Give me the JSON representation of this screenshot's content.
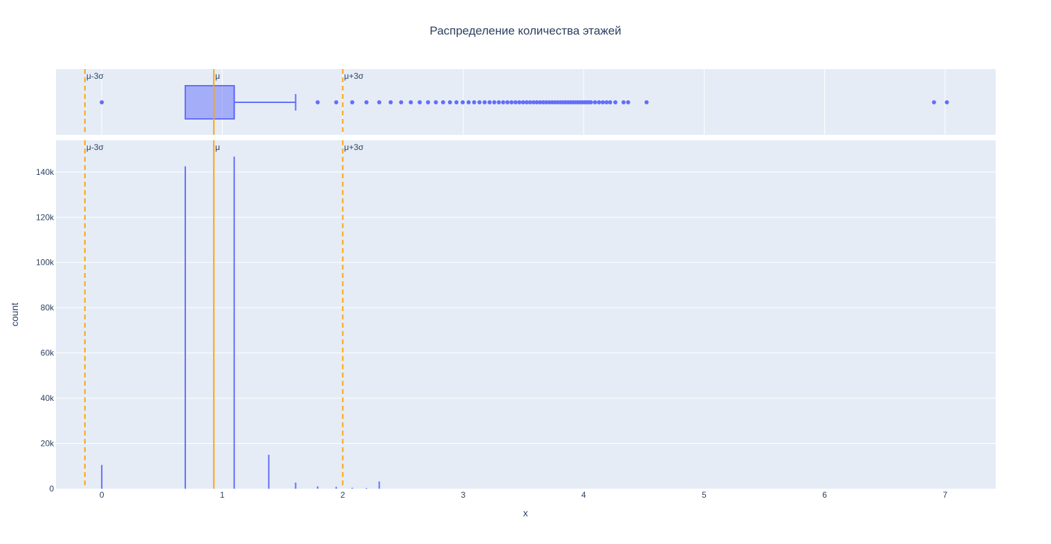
{
  "chart_data": {
    "type": "histogram",
    "title": "Распределение количества этажей",
    "xlabel": "x",
    "ylabel": "count",
    "xlim": [
      -0.38,
      7.42
    ],
    "ylim": [
      0,
      154000
    ],
    "x_ticks": [
      0,
      1,
      2,
      3,
      4,
      5,
      6,
      7
    ],
    "x_tick_labels": [
      "0",
      "1",
      "2",
      "3",
      "4",
      "5",
      "6",
      "7"
    ],
    "y_ticks": [
      0,
      20000,
      40000,
      60000,
      80000,
      100000,
      120000,
      140000
    ],
    "y_tick_labels": [
      "0",
      "20k",
      "40k",
      "60k",
      "80k",
      "100k",
      "120k",
      "140k"
    ],
    "grid": true,
    "colors": {
      "trace": "#636efa",
      "box_fill": "rgba(99,110,250,0.5)",
      "lines": "#ffa500",
      "plot_bg": "#e5ecf6",
      "grid": "#ffffff"
    },
    "histogram": {
      "bins": [
        {
          "x": 0.0,
          "count": 10500
        },
        {
          "x": 0.693,
          "count": 142500
        },
        {
          "x": 1.099,
          "count": 146800
        },
        {
          "x": 1.386,
          "count": 15000
        },
        {
          "x": 1.609,
          "count": 2700
        },
        {
          "x": 1.792,
          "count": 1000
        },
        {
          "x": 1.946,
          "count": 800
        },
        {
          "x": 2.079,
          "count": 400
        },
        {
          "x": 2.197,
          "count": 300
        },
        {
          "x": 2.303,
          "count": 3200
        }
      ]
    },
    "box": {
      "q1": 0.693,
      "median": 1.099,
      "q3": 1.099,
      "lower_fence": 0.693,
      "upper_fence": 1.609,
      "outliers": [
        0.0,
        1.792,
        1.946,
        2.079,
        2.197,
        2.303,
        2.398,
        2.485,
        2.565,
        2.639,
        2.708,
        2.773,
        2.833,
        2.89,
        2.944,
        2.996,
        3.045,
        3.091,
        3.135,
        3.178,
        3.219,
        3.258,
        3.296,
        3.332,
        3.367,
        3.401,
        3.434,
        3.466,
        3.497,
        3.526,
        3.555,
        3.584,
        3.611,
        3.638,
        3.664,
        3.689,
        3.714,
        3.738,
        3.761,
        3.784,
        3.807,
        3.829,
        3.85,
        3.871,
        3.892,
        3.912,
        3.932,
        3.951,
        3.97,
        3.989,
        4.007,
        4.025,
        4.043,
        4.06,
        4.094,
        4.127,
        4.159,
        4.19,
        4.22,
        4.263,
        4.331,
        4.369,
        4.522,
        6.908,
        7.015
      ]
    },
    "vlines": [
      {
        "label": "μ-3σ",
        "x": -0.14,
        "style": "dash"
      },
      {
        "label": "μ",
        "x": 0.93,
        "style": "solid"
      },
      {
        "label": "μ+3σ",
        "x": 2.0,
        "style": "dash"
      }
    ]
  }
}
